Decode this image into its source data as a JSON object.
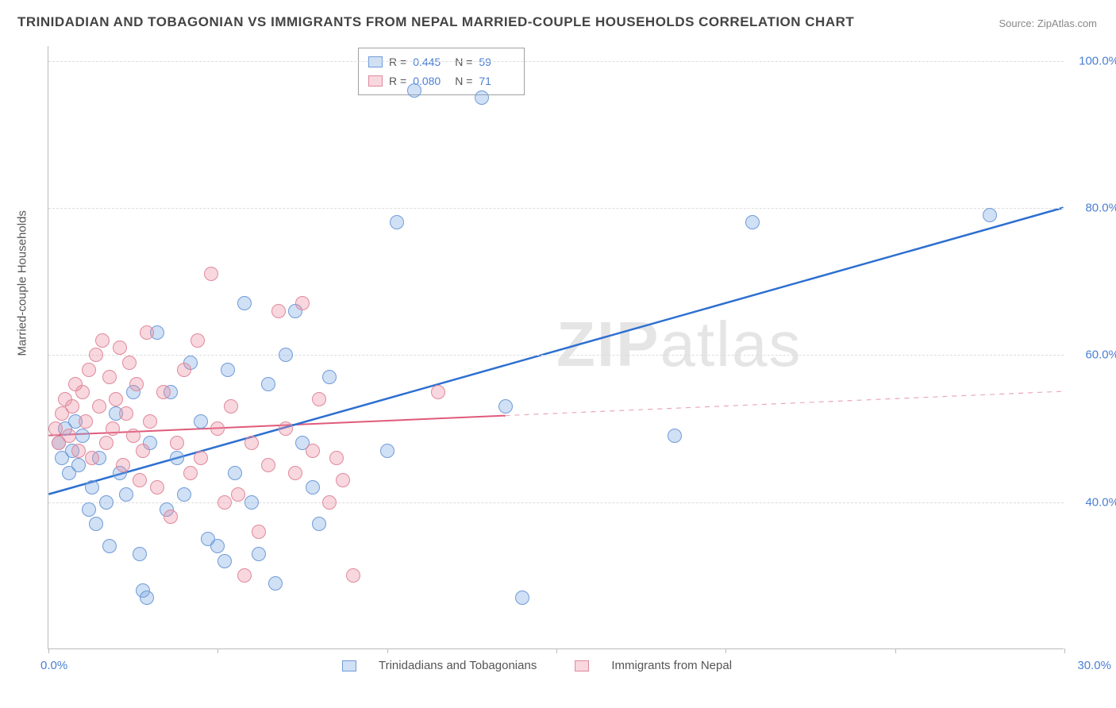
{
  "title": "TRINIDADIAN AND TOBAGONIAN VS IMMIGRANTS FROM NEPAL MARRIED-COUPLE HOUSEHOLDS CORRELATION CHART",
  "source": "Source: ZipAtlas.com",
  "y_axis_title": "Married-couple Households",
  "watermark_bold": "ZIP",
  "watermark_rest": "atlas",
  "chart": {
    "type": "scatter",
    "xlim": [
      0,
      30
    ],
    "ylim": [
      20,
      102
    ],
    "x_ticks": [
      0,
      5,
      10,
      15,
      20,
      25,
      30
    ],
    "x_tick_labels": {
      "first": "0.0%",
      "last": "30.0%"
    },
    "y_gridlines": [
      40,
      60,
      80,
      100
    ],
    "y_tick_labels": [
      "40.0%",
      "60.0%",
      "80.0%",
      "100.0%"
    ],
    "background_color": "#ffffff",
    "grid_color": "#dddddd",
    "marker_radius": 9,
    "marker_border_width": 1.4,
    "series": [
      {
        "name": "Trinidadians and Tobagonians",
        "color_fill": "rgba(120,165,225,0.35)",
        "color_border": "#6f9bd8",
        "R": "0.445",
        "N": "59",
        "trend": {
          "solid_from_x": 0,
          "solid_to_x": 30,
          "y_at_xmin": 41,
          "y_at_xmax": 80,
          "color": "#2d6fd0",
          "width": 2.5
        },
        "points": [
          [
            0.3,
            48
          ],
          [
            0.4,
            46
          ],
          [
            0.5,
            50
          ],
          [
            0.6,
            44
          ],
          [
            0.7,
            47
          ],
          [
            0.8,
            51
          ],
          [
            0.9,
            45
          ],
          [
            1.0,
            49
          ],
          [
            1.2,
            39
          ],
          [
            1.3,
            42
          ],
          [
            1.4,
            37
          ],
          [
            1.5,
            46
          ],
          [
            1.7,
            40
          ],
          [
            1.8,
            34
          ],
          [
            2.0,
            52
          ],
          [
            2.1,
            44
          ],
          [
            2.3,
            41
          ],
          [
            2.5,
            55
          ],
          [
            2.7,
            33
          ],
          [
            2.8,
            28
          ],
          [
            2.9,
            27
          ],
          [
            3.0,
            48
          ],
          [
            3.2,
            63
          ],
          [
            3.5,
            39
          ],
          [
            3.6,
            55
          ],
          [
            3.8,
            46
          ],
          [
            4.0,
            41
          ],
          [
            4.2,
            59
          ],
          [
            4.5,
            51
          ],
          [
            4.7,
            35
          ],
          [
            5.0,
            34
          ],
          [
            5.2,
            32
          ],
          [
            5.3,
            58
          ],
          [
            5.5,
            44
          ],
          [
            5.8,
            67
          ],
          [
            6.0,
            40
          ],
          [
            6.2,
            33
          ],
          [
            6.5,
            56
          ],
          [
            6.7,
            29
          ],
          [
            7.0,
            60
          ],
          [
            7.3,
            66
          ],
          [
            7.5,
            48
          ],
          [
            7.8,
            42
          ],
          [
            8.0,
            37
          ],
          [
            8.3,
            57
          ],
          [
            10.0,
            47
          ],
          [
            10.3,
            78
          ],
          [
            10.8,
            96
          ],
          [
            12.8,
            95
          ],
          [
            13.5,
            53
          ],
          [
            14.0,
            27
          ],
          [
            18.5,
            49
          ],
          [
            20.8,
            78
          ],
          [
            27.8,
            79
          ]
        ]
      },
      {
        "name": "Immigrants from Nepal",
        "color_fill": "rgba(235,140,160,0.35)",
        "color_border": "#e0899c",
        "R": "0.080",
        "N": "71",
        "trend": {
          "solid_from_x": 0,
          "solid_to_x": 13.5,
          "y_at_xmin": 49,
          "y_at_xmax": 55,
          "color": "#e05a7a",
          "width": 2,
          "dash_color": "#e9a8b6"
        },
        "points": [
          [
            0.2,
            50
          ],
          [
            0.3,
            48
          ],
          [
            0.4,
            52
          ],
          [
            0.5,
            54
          ],
          [
            0.6,
            49
          ],
          [
            0.7,
            53
          ],
          [
            0.8,
            56
          ],
          [
            0.9,
            47
          ],
          [
            1.0,
            55
          ],
          [
            1.1,
            51
          ],
          [
            1.2,
            58
          ],
          [
            1.3,
            46
          ],
          [
            1.4,
            60
          ],
          [
            1.5,
            53
          ],
          [
            1.6,
            62
          ],
          [
            1.7,
            48
          ],
          [
            1.8,
            57
          ],
          [
            1.9,
            50
          ],
          [
            2.0,
            54
          ],
          [
            2.1,
            61
          ],
          [
            2.2,
            45
          ],
          [
            2.3,
            52
          ],
          [
            2.4,
            59
          ],
          [
            2.5,
            49
          ],
          [
            2.6,
            56
          ],
          [
            2.7,
            43
          ],
          [
            2.8,
            47
          ],
          [
            2.9,
            63
          ],
          [
            3.0,
            51
          ],
          [
            3.2,
            42
          ],
          [
            3.4,
            55
          ],
          [
            3.6,
            38
          ],
          [
            3.8,
            48
          ],
          [
            4.0,
            58
          ],
          [
            4.2,
            44
          ],
          [
            4.4,
            62
          ],
          [
            4.5,
            46
          ],
          [
            4.8,
            71
          ],
          [
            5.0,
            50
          ],
          [
            5.2,
            40
          ],
          [
            5.4,
            53
          ],
          [
            5.6,
            41
          ],
          [
            5.8,
            30
          ],
          [
            6.0,
            48
          ],
          [
            6.2,
            36
          ],
          [
            6.5,
            45
          ],
          [
            6.8,
            66
          ],
          [
            7.0,
            50
          ],
          [
            7.3,
            44
          ],
          [
            7.5,
            67
          ],
          [
            7.8,
            47
          ],
          [
            8.0,
            54
          ],
          [
            8.3,
            40
          ],
          [
            8.5,
            46
          ],
          [
            8.7,
            43
          ],
          [
            9.0,
            30
          ],
          [
            11.5,
            55
          ]
        ]
      }
    ],
    "legend_labels": {
      "series1": "Trinidadians and Tobagonians",
      "series2": "Immigrants from Nepal",
      "R_prefix": "R  =",
      "N_prefix": "N  ="
    }
  }
}
